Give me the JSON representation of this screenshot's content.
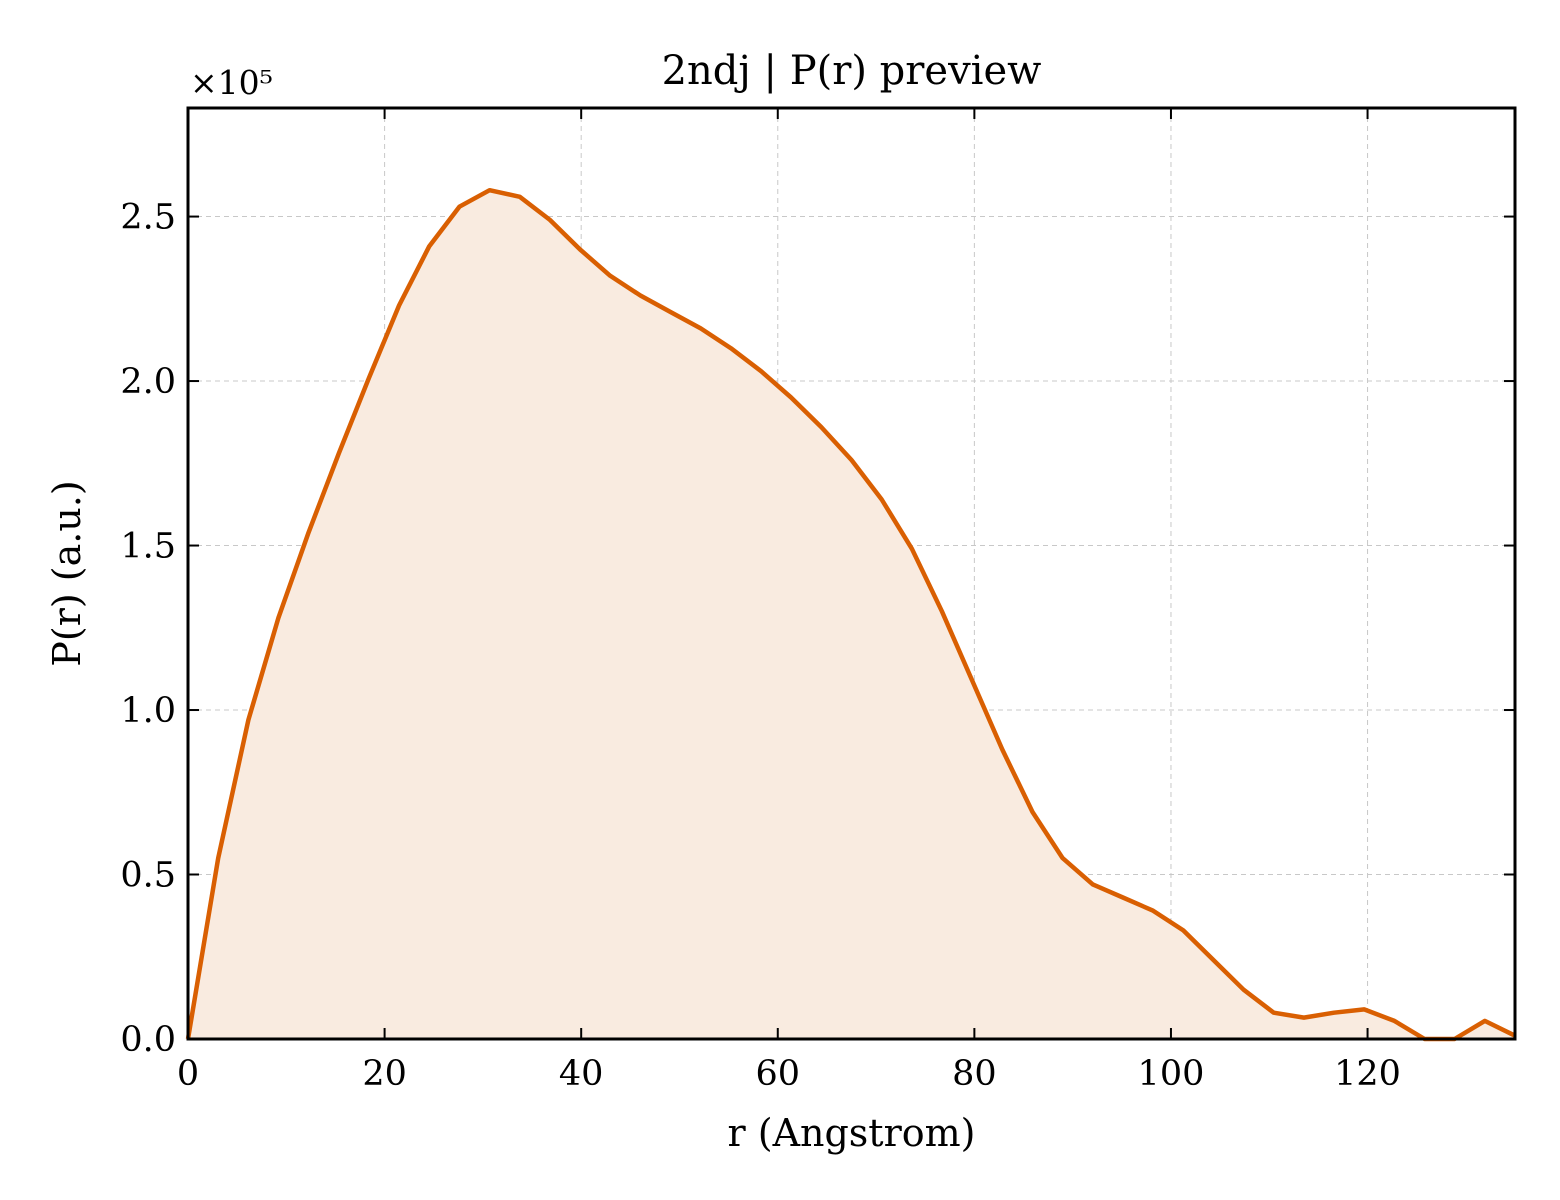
{
  "chart_data": {
    "type": "area",
    "title": "2ndj | P(r) preview",
    "xlabel": "r (Angstrom)",
    "ylabel": "P(r) (a.u.)",
    "y_offset_label": "×10⁵",
    "y_scale": 100000,
    "xlim": [
      0,
      135
    ],
    "ylim": [
      0,
      2.83
    ],
    "xticks": [
      0,
      20,
      40,
      60,
      80,
      100,
      120
    ],
    "xtick_labels": [
      "0",
      "20",
      "40",
      "60",
      "80",
      "100",
      "120"
    ],
    "yticks": [
      0.0,
      0.5,
      1.0,
      1.5,
      2.0,
      2.5
    ],
    "ytick_labels": [
      "0.0",
      "0.5",
      "1.0",
      "1.5",
      "2.0",
      "2.5"
    ],
    "grid": true,
    "line_color": "#d95f02",
    "fill_color": "#f9ebe0",
    "x": [
      0,
      3.07,
      6.14,
      9.2,
      12.27,
      15.34,
      18.41,
      21.48,
      24.55,
      27.61,
      30.68,
      33.75,
      36.82,
      39.89,
      42.95,
      46.02,
      49.09,
      52.16,
      55.23,
      58.3,
      61.36,
      64.43,
      67.5,
      70.57,
      73.64,
      76.7,
      79.77,
      82.84,
      85.91,
      88.98,
      92.05,
      95.11,
      98.18,
      101.25,
      104.32,
      107.39,
      110.45,
      113.52,
      116.59,
      119.66,
      122.73,
      125.8,
      128.86,
      131.93,
      135.0
    ],
    "y": [
      0.0,
      0.55,
      0.97,
      1.28,
      1.54,
      1.78,
      2.01,
      2.23,
      2.41,
      2.53,
      2.58,
      2.56,
      2.49,
      2.4,
      2.32,
      2.26,
      2.21,
      2.16,
      2.1,
      2.03,
      1.95,
      1.86,
      1.76,
      1.64,
      1.49,
      1.3,
      1.09,
      0.88,
      0.69,
      0.55,
      0.47,
      0.43,
      0.39,
      0.33,
      0.24,
      0.15,
      0.08,
      0.065,
      0.08,
      0.09,
      0.055,
      0.0,
      0.0,
      0.055,
      0.01
    ]
  }
}
